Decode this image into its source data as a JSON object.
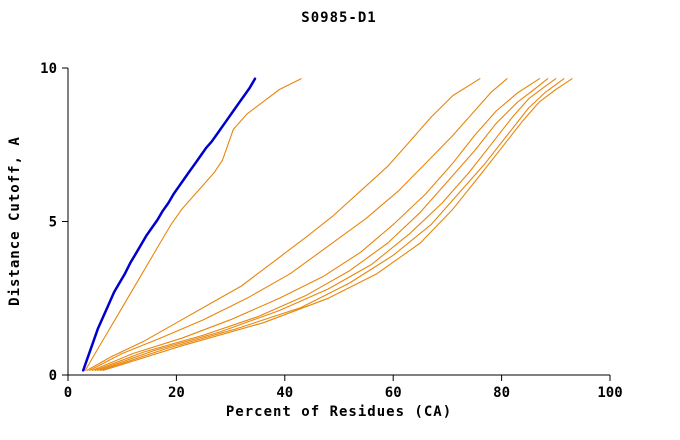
{
  "chart_data": {
    "type": "line",
    "title": "S0985-D1",
    "xlabel": "Percent of Residues (CA)",
    "ylabel": "Distance Cutoff, A",
    "xlim": [
      0,
      100
    ],
    "ylim": [
      0,
      10
    ],
    "xticks": [
      0,
      20,
      40,
      60,
      80,
      100
    ],
    "yticks": [
      0,
      5,
      10
    ],
    "grid": false,
    "legend_position": "none",
    "axis_color": "#000000",
    "background": "#ffffff",
    "series": [
      {
        "name": "orange-1",
        "color": "#e8860d",
        "width": 1.1,
        "points": [
          [
            3.2,
            0.15
          ],
          [
            5,
            0.7
          ],
          [
            7,
            1.3
          ],
          [
            9,
            1.9
          ],
          [
            11,
            2.5
          ],
          [
            13,
            3.1
          ],
          [
            15,
            3.7
          ],
          [
            17,
            4.3
          ],
          [
            19,
            4.9
          ],
          [
            21,
            5.4
          ],
          [
            23,
            5.8
          ],
          [
            25,
            6.2
          ],
          [
            27,
            6.6
          ],
          [
            28.5,
            7.0
          ],
          [
            29.5,
            7.5
          ],
          [
            30.5,
            8.0
          ],
          [
            33,
            8.5
          ],
          [
            36,
            8.9
          ],
          [
            39,
            9.3
          ],
          [
            43,
            9.65
          ]
        ]
      },
      {
        "name": "orange-2",
        "color": "#e8860d",
        "width": 1.1,
        "points": [
          [
            3.5,
            0.15
          ],
          [
            8,
            0.6
          ],
          [
            14,
            1.1
          ],
          [
            20,
            1.7
          ],
          [
            26,
            2.3
          ],
          [
            32,
            2.9
          ],
          [
            38,
            3.7
          ],
          [
            44,
            4.5
          ],
          [
            49,
            5.2
          ],
          [
            54,
            6.0
          ],
          [
            59,
            6.8
          ],
          [
            63,
            7.6
          ],
          [
            67,
            8.4
          ],
          [
            71,
            9.1
          ],
          [
            76,
            9.65
          ]
        ]
      },
      {
        "name": "orange-3",
        "color": "#e8860d",
        "width": 1.1,
        "points": [
          [
            4,
            0.15
          ],
          [
            10,
            0.7
          ],
          [
            17,
            1.2
          ],
          [
            25,
            1.8
          ],
          [
            33,
            2.5
          ],
          [
            41,
            3.3
          ],
          [
            48,
            4.2
          ],
          [
            55,
            5.1
          ],
          [
            61,
            6.0
          ],
          [
            66,
            6.9
          ],
          [
            71,
            7.8
          ],
          [
            75,
            8.6
          ],
          [
            78,
            9.2
          ],
          [
            81,
            9.65
          ]
        ]
      },
      {
        "name": "orange-4",
        "color": "#e8860d",
        "width": 1.1,
        "points": [
          [
            4.5,
            0.15
          ],
          [
            12,
            0.7
          ],
          [
            21,
            1.2
          ],
          [
            30,
            1.8
          ],
          [
            39,
            2.5
          ],
          [
            47,
            3.2
          ],
          [
            54,
            4.0
          ],
          [
            60,
            4.9
          ],
          [
            66,
            5.9
          ],
          [
            71,
            6.9
          ],
          [
            75,
            7.8
          ],
          [
            79,
            8.6
          ],
          [
            83,
            9.2
          ],
          [
            87,
            9.65
          ]
        ]
      },
      {
        "name": "orange-5",
        "color": "#e8860d",
        "width": 1.1,
        "points": [
          [
            5,
            0.15
          ],
          [
            14,
            0.75
          ],
          [
            25,
            1.3
          ],
          [
            35,
            1.9
          ],
          [
            44,
            2.6
          ],
          [
            52,
            3.4
          ],
          [
            59,
            4.3
          ],
          [
            65,
            5.3
          ],
          [
            70,
            6.3
          ],
          [
            75,
            7.3
          ],
          [
            79,
            8.2
          ],
          [
            83,
            8.9
          ],
          [
            86,
            9.3
          ],
          [
            88.5,
            9.65
          ]
        ]
      },
      {
        "name": "orange-6",
        "color": "#e8860d",
        "width": 1.1,
        "points": [
          [
            5.5,
            0.15
          ],
          [
            16,
            0.8
          ],
          [
            28,
            1.4
          ],
          [
            39,
            2.1
          ],
          [
            48,
            2.8
          ],
          [
            56,
            3.6
          ],
          [
            63,
            4.6
          ],
          [
            69,
            5.6
          ],
          [
            74,
            6.6
          ],
          [
            78,
            7.5
          ],
          [
            82,
            8.4
          ],
          [
            85,
            9.0
          ],
          [
            88,
            9.4
          ],
          [
            90,
            9.65
          ]
        ]
      },
      {
        "name": "orange-7",
        "color": "#e8860d",
        "width": 1.1,
        "points": [
          [
            6,
            0.15
          ],
          [
            18,
            0.85
          ],
          [
            31,
            1.5
          ],
          [
            43,
            2.2
          ],
          [
            52,
            3.0
          ],
          [
            60,
            3.9
          ],
          [
            67,
            4.9
          ],
          [
            72,
            5.9
          ],
          [
            77,
            6.9
          ],
          [
            81,
            7.8
          ],
          [
            85,
            8.7
          ],
          [
            88,
            9.2
          ],
          [
            91.5,
            9.65
          ]
        ]
      },
      {
        "name": "orange-8",
        "color": "#e8860d",
        "width": 1.1,
        "points": [
          [
            6.5,
            0.15
          ],
          [
            21,
            0.95
          ],
          [
            36,
            1.7
          ],
          [
            48,
            2.5
          ],
          [
            57,
            3.3
          ],
          [
            65,
            4.3
          ],
          [
            71,
            5.4
          ],
          [
            76,
            6.5
          ],
          [
            80,
            7.4
          ],
          [
            84,
            8.3
          ],
          [
            87,
            8.9
          ],
          [
            90,
            9.3
          ],
          [
            93,
            9.65
          ]
        ]
      },
      {
        "name": "blue",
        "color": "#0000cd",
        "width": 2.5,
        "points": [
          [
            2.8,
            0.15
          ],
          [
            3.5,
            0.5
          ],
          [
            4.5,
            1.0
          ],
          [
            5.5,
            1.5
          ],
          [
            6.5,
            1.9
          ],
          [
            7.5,
            2.3
          ],
          [
            8.5,
            2.7
          ],
          [
            9.5,
            3.0
          ],
          [
            10.5,
            3.3
          ],
          [
            11.5,
            3.65
          ],
          [
            12.5,
            3.95
          ],
          [
            13.5,
            4.25
          ],
          [
            14.5,
            4.55
          ],
          [
            15.5,
            4.8
          ],
          [
            16.5,
            5.05
          ],
          [
            17.5,
            5.35
          ],
          [
            18.5,
            5.6
          ],
          [
            19.5,
            5.9
          ],
          [
            20.5,
            6.15
          ],
          [
            21.5,
            6.4
          ],
          [
            22.5,
            6.65
          ],
          [
            23.5,
            6.9
          ],
          [
            24.5,
            7.15
          ],
          [
            25.5,
            7.4
          ],
          [
            26.5,
            7.6
          ],
          [
            27.5,
            7.85
          ],
          [
            28.5,
            8.1
          ],
          [
            29.5,
            8.35
          ],
          [
            30.5,
            8.6
          ],
          [
            31.5,
            8.85
          ],
          [
            32.5,
            9.1
          ],
          [
            33.5,
            9.35
          ],
          [
            34.5,
            9.65
          ]
        ]
      }
    ]
  }
}
